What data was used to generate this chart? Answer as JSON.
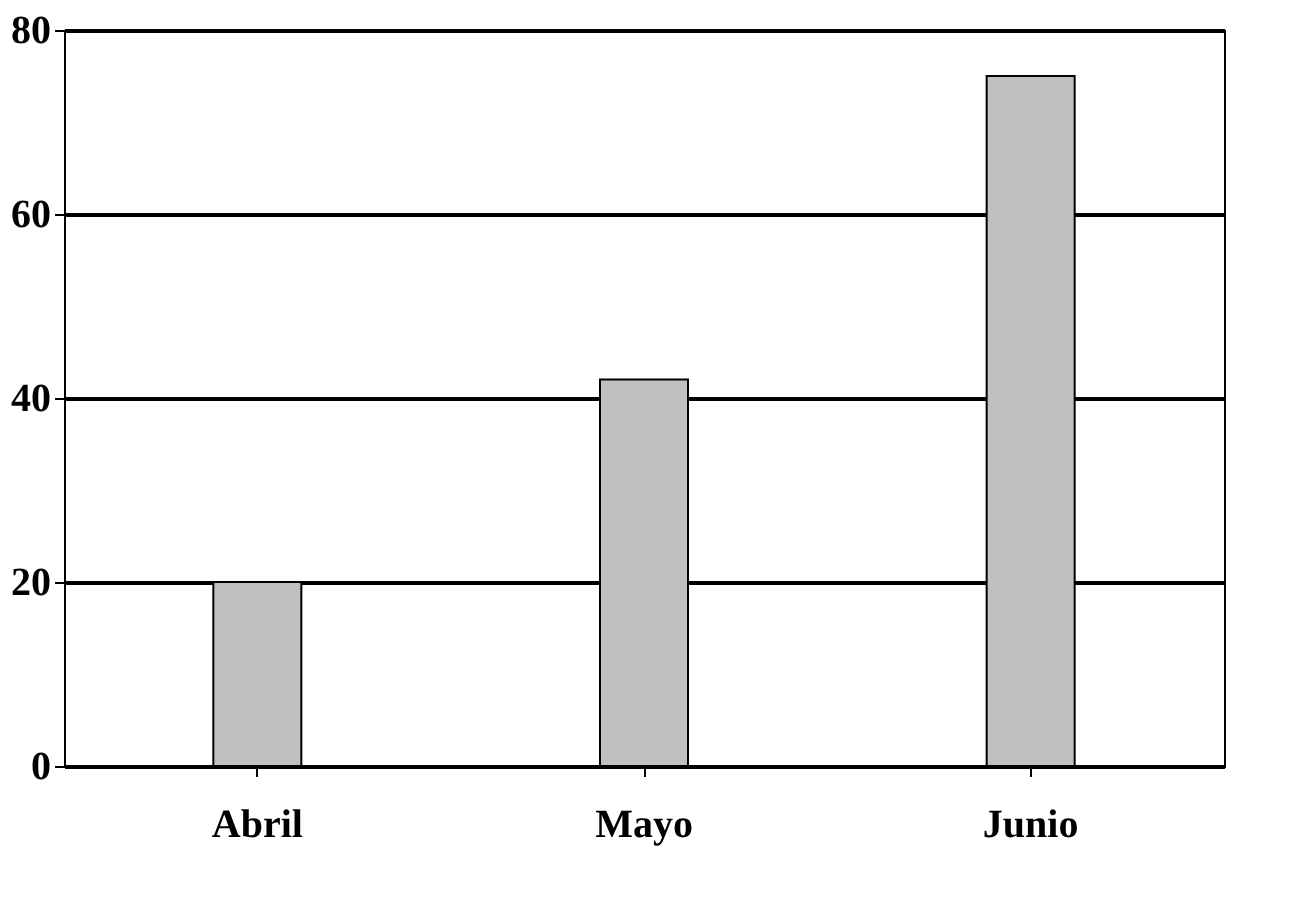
{
  "chart_data": {
    "type": "bar",
    "categories": [
      "Abril",
      "Mayo",
      "Junio"
    ],
    "values": [
      20,
      42,
      75
    ],
    "color": "#c0c0c0",
    "ylim": [
      0,
      80
    ],
    "yticks": [
      0,
      20,
      40,
      60,
      80
    ],
    "grid": "y"
  }
}
